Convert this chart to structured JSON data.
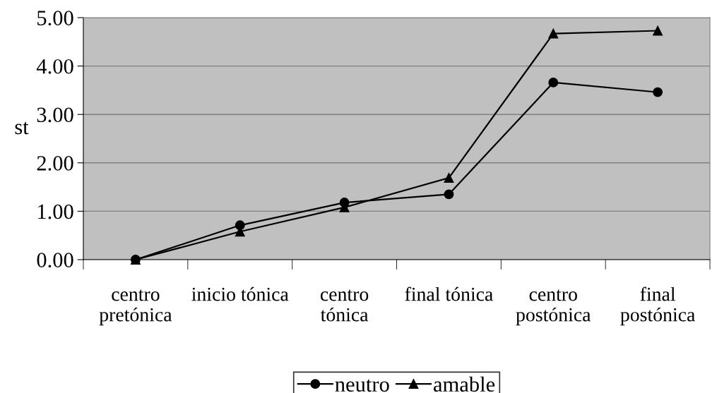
{
  "chart_data": {
    "type": "line",
    "ylabel": "st",
    "categories": [
      "centro\npretónica",
      "inicio tónica",
      "centro\ntónica",
      "final tónica",
      "centro\npostónica",
      "final\npostónica"
    ],
    "series": [
      {
        "name": "neutro",
        "color": "#000000",
        "marker": "circle",
        "values": [
          0,
          0.71,
          1.18,
          1.35,
          3.66,
          3.46
        ]
      },
      {
        "name": "amable",
        "color": "#000000",
        "marker": "triangle",
        "values": [
          0,
          0.58,
          1.08,
          1.69,
          4.67,
          4.73
        ]
      }
    ],
    "ylim": [
      0,
      5
    ],
    "yticks": [
      {
        "value": 0,
        "label": "0.00"
      },
      {
        "value": 1,
        "label": "1.00"
      },
      {
        "value": 2,
        "label": "2.00"
      },
      {
        "value": 3,
        "label": "3.00"
      },
      {
        "value": 4,
        "label": "4.00"
      },
      {
        "value": 5,
        "label": "5.00"
      }
    ],
    "grid": "y",
    "legend": "bottom",
    "line_style": "solid"
  }
}
